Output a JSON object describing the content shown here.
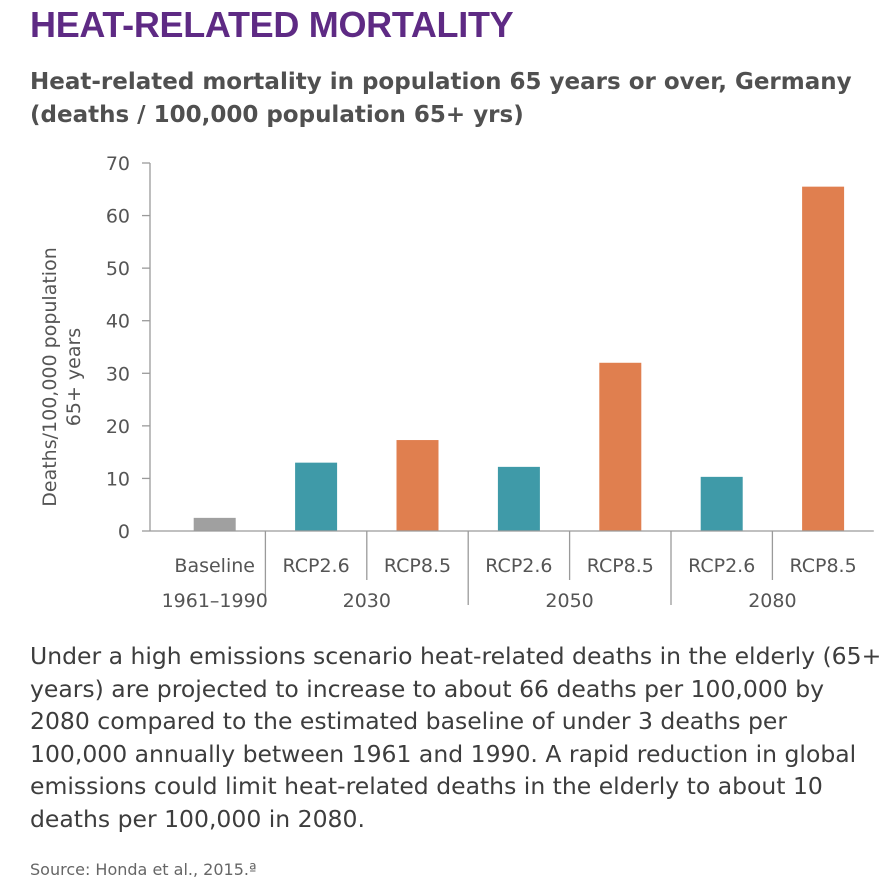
{
  "header": {
    "section_title": "HEAT-RELATED MORTALITY"
  },
  "chart_data": {
    "type": "bar",
    "title": "Heat-related mortality in population 65 years or over, Germany (deaths / 100,000 population 65+ yrs)",
    "ylabel_line1": "Deaths/100,000 population",
    "ylabel_line2": "65+ years",
    "xlabel": "",
    "ylim": [
      0,
      70
    ],
    "yticks": [
      0,
      10,
      20,
      30,
      40,
      50,
      60,
      70
    ],
    "grid": false,
    "categories": [
      "Baseline",
      "RCP2.6",
      "RCP8.5",
      "RCP2.6",
      "RCP8.5",
      "RCP2.6",
      "RCP8.5"
    ],
    "groups": [
      "1961–1990",
      "2030",
      "2050",
      "2080"
    ],
    "category_groups": [
      0,
      1,
      1,
      2,
      2,
      3,
      3
    ],
    "values": [
      2.5,
      13,
      17.3,
      12.2,
      32,
      10.3,
      65.5
    ],
    "colors": [
      "#a0a0a0",
      "#3f9aa8",
      "#e07f4f",
      "#3f9aa8",
      "#e07f4f",
      "#3f9aa8",
      "#e07f4f"
    ]
  },
  "description": "Under a high emissions scenario heat-related deaths in the elderly (65+ years) are projected to increase to about 66 deaths per 100,000 by 2080 compared to the estimated baseline of under 3 deaths per 100,000 annually between 1961 and 1990. A rapid reduction in global emissions could limit heat-related deaths in the elderly to about 10 deaths per 100,000 in 2080.",
  "source": "Source: Honda et al., 2015.ª"
}
